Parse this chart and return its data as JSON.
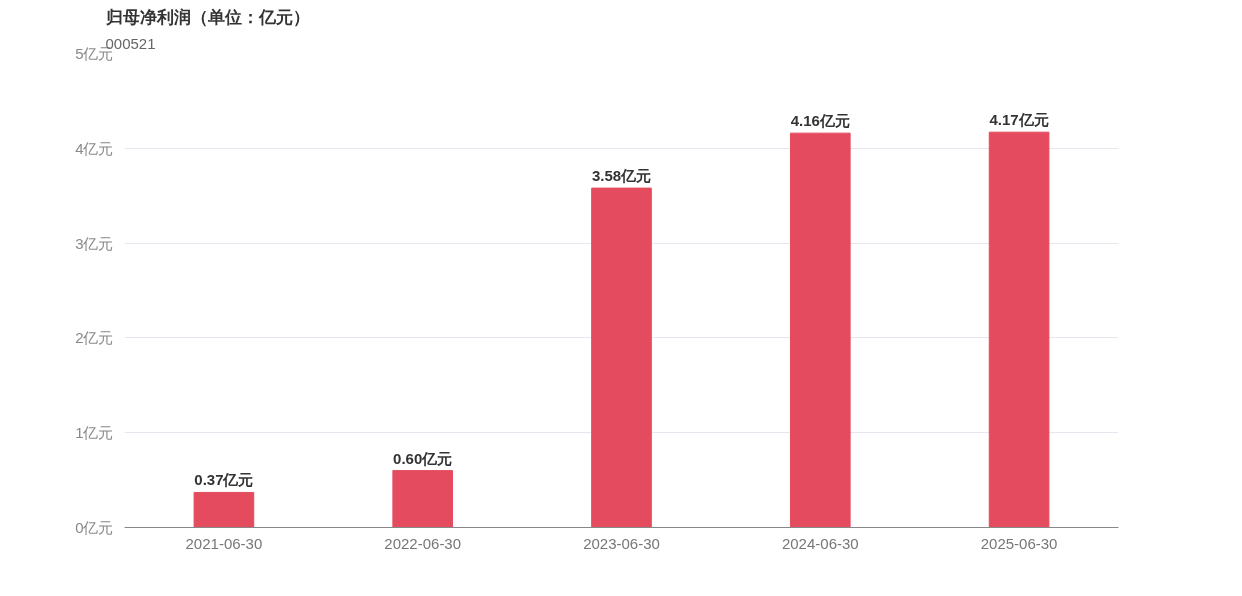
{
  "chart_data": {
    "type": "bar",
    "title": "归母净利润（单位：亿元）",
    "subtitle": "000521",
    "categories": [
      "2021-06-30",
      "2022-06-30",
      "2023-06-30",
      "2024-06-30",
      "2025-06-30"
    ],
    "values": [
      0.37,
      0.6,
      3.58,
      4.16,
      4.17
    ],
    "value_labels": [
      "0.37亿元",
      "0.60亿元",
      "3.58亿元",
      "4.16亿元",
      "4.17亿元"
    ],
    "color": "#e54b5e",
    "ylim": [
      0,
      5
    ],
    "yticks": [
      {
        "value": 0,
        "label": "0亿元"
      },
      {
        "value": 1,
        "label": "1亿元"
      },
      {
        "value": 2,
        "label": "2亿元"
      },
      {
        "value": 3,
        "label": "3亿元"
      },
      {
        "value": 4,
        "label": "4亿元"
      },
      {
        "value": 5,
        "label": "5亿元"
      }
    ],
    "grid": "y"
  }
}
